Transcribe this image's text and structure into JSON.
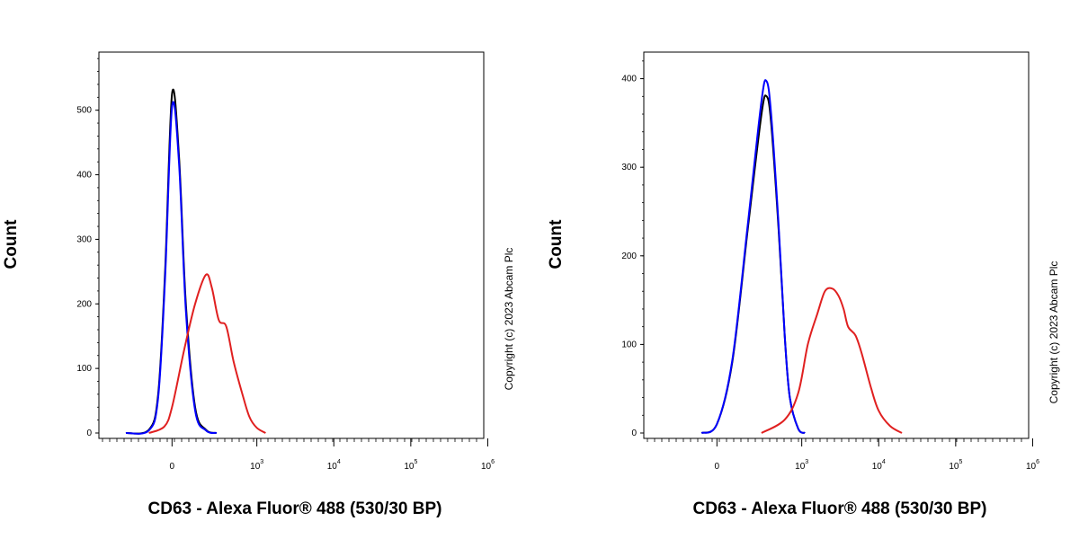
{
  "chart_data": [
    {
      "type": "line",
      "subtype": "flow-cytometry-histogram",
      "x_scale": "biexponential",
      "xlabel": "CD63 - Alexa Fluor® 488 (530/30 BP)",
      "ylabel": "Count",
      "copyright": "Copyright (c) 2023 Abcam Plc",
      "ylim": [
        0,
        590
      ],
      "y_ticks": [
        0,
        100,
        200,
        300,
        400,
        500
      ],
      "x_ticks": [
        {
          "value": 0,
          "base": "0",
          "exp": ""
        },
        {
          "value": 1000,
          "base": "10",
          "exp": "3"
        },
        {
          "value": 10000,
          "base": "10",
          "exp": "4"
        },
        {
          "value": 100000,
          "base": "10",
          "exp": "5"
        },
        {
          "value": 1000000,
          "base": "10",
          "exp": "6"
        }
      ],
      "series": [
        {
          "color": "#000000",
          "x": [
            -300,
            -150,
            -90,
            -45,
            0,
            45,
            90,
            150,
            220,
            300
          ],
          "y": [
            0,
            5,
            60,
            250,
            525,
            430,
            200,
            40,
            5,
            0
          ]
        },
        {
          "color": "#0000ff",
          "x": [
            -300,
            -150,
            -90,
            -45,
            0,
            45,
            90,
            150,
            220,
            300
          ],
          "y": [
            0,
            4,
            55,
            240,
            505,
            420,
            190,
            35,
            4,
            0
          ]
        },
        {
          "color": "#e02020",
          "x": [
            -150,
            -50,
            0,
            80,
            150,
            220,
            260,
            320,
            400,
            500,
            650,
            800,
            1000,
            1300
          ],
          "y": [
            0,
            10,
            40,
            130,
            200,
            245,
            225,
            175,
            165,
            110,
            60,
            25,
            8,
            0
          ]
        }
      ]
    },
    {
      "type": "line",
      "subtype": "flow-cytometry-histogram",
      "x_scale": "biexponential",
      "xlabel": "CD63 - Alexa Fluor® 488 (530/30 BP)",
      "ylabel": "Count",
      "copyright": "Copyright (c) 2023 Abcam Plc",
      "ylim": [
        0,
        430
      ],
      "y_ticks": [
        0,
        100,
        200,
        300,
        400
      ],
      "x_ticks": [
        {
          "value": 0,
          "base": "0",
          "exp": ""
        },
        {
          "value": 1000,
          "base": "10",
          "exp": "3"
        },
        {
          "value": 10000,
          "base": "10",
          "exp": "4"
        },
        {
          "value": 100000,
          "base": "10",
          "exp": "5"
        },
        {
          "value": 1000000,
          "base": "10",
          "exp": "6"
        }
      ],
      "series": [
        {
          "color": "#000000",
          "x": [
            -100,
            0,
            100,
            200,
            300,
            350,
            400,
            500,
            600,
            700,
            900,
            1100
          ],
          "y": [
            0,
            10,
            80,
            230,
            360,
            380,
            350,
            230,
            110,
            40,
            5,
            0
          ]
        },
        {
          "color": "#0000ff",
          "x": [
            -100,
            0,
            100,
            200,
            300,
            350,
            400,
            500,
            600,
            700,
            900,
            1100
          ],
          "y": [
            0,
            10,
            82,
            235,
            375,
            397,
            360,
            235,
            110,
            40,
            5,
            0
          ]
        },
        {
          "color": "#e02020",
          "x": [
            300,
            600,
            900,
            1200,
            1600,
            2000,
            2500,
            3000,
            3500,
            4000,
            5000,
            6000,
            8000,
            10000,
            14000,
            20000
          ],
          "y": [
            0,
            15,
            45,
            100,
            135,
            160,
            163,
            155,
            140,
            120,
            110,
            90,
            50,
            25,
            8,
            0
          ]
        }
      ]
    }
  ]
}
